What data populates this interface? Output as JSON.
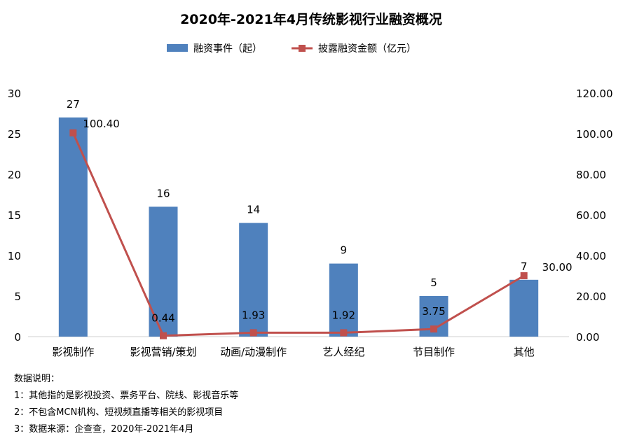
{
  "chart_data": {
    "type": "bar",
    "title": "2020年-2021年4月传统影视行业融资概况",
    "categories": [
      "影视制作",
      "影视营销/策划",
      "动画/动漫制作",
      "艺人经纪",
      "节目制作",
      "其他"
    ],
    "series": [
      {
        "name": "融资事件（起）",
        "type": "bar",
        "axis": "left",
        "color": "#4F81BD",
        "values": [
          27,
          16,
          14,
          9,
          5,
          7
        ],
        "labels": [
          "27",
          "16",
          "14",
          "9",
          "5",
          "7"
        ]
      },
      {
        "name": "披露融资金额（亿元）",
        "type": "line",
        "axis": "right",
        "color": "#C0504D",
        "values": [
          100.4,
          0.44,
          1.93,
          1.92,
          3.75,
          30.0
        ],
        "labels": [
          "100.40",
          "0.44",
          "1.93",
          "1.92",
          "3.75",
          "30.00"
        ]
      }
    ],
    "y_left": {
      "min": 0,
      "max": 30,
      "ticks": [
        "0",
        "5",
        "10",
        "15",
        "20",
        "25",
        "30"
      ]
    },
    "y_right": {
      "min": 0,
      "max": 120,
      "ticks": [
        "0.00",
        "20.00",
        "40.00",
        "60.00",
        "80.00",
        "100.00",
        "120.00"
      ]
    },
    "legend_position": "top-center",
    "grid": false
  },
  "notes": {
    "heading": "数据说明：",
    "items": [
      "1：其他指的是影视投资、票务平台、院线、影视音乐等",
      "2：不包含MCN机构、短视频直播等相关的影视项目",
      "3：数据来源：企查查，2020年-2021年4月"
    ]
  }
}
